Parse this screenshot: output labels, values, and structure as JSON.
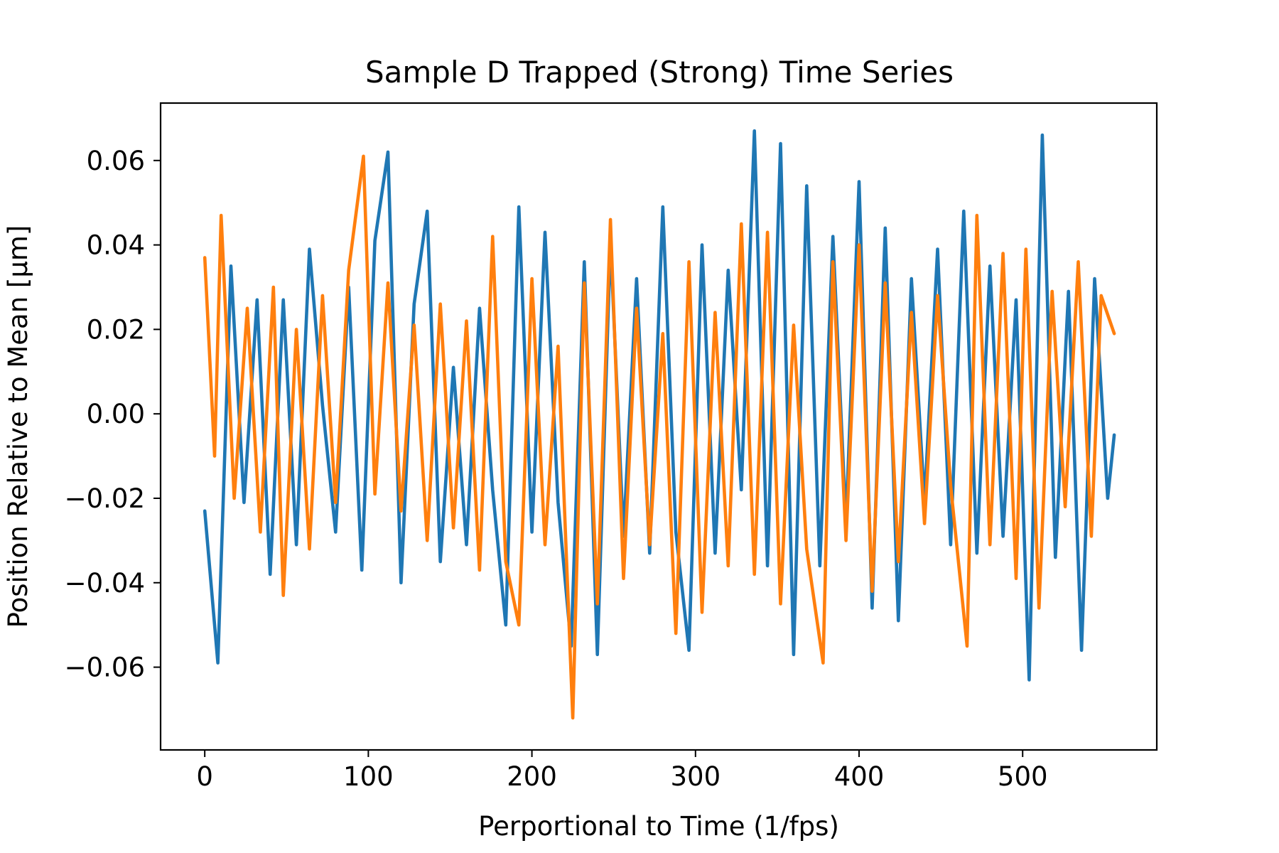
{
  "chart_data": {
    "type": "line",
    "title": "Sample D Trapped (Strong) Time Series",
    "xlabel": "Perportional to Time (1/fps)",
    "ylabel": "Position Relative to Mean [μm]",
    "xlim": [
      -27,
      582
    ],
    "ylim": [
      -0.0796,
      0.0736
    ],
    "xticks": [
      0,
      100,
      200,
      300,
      400,
      500
    ],
    "xtick_labels": [
      "0",
      "100",
      "200",
      "300",
      "400",
      "500"
    ],
    "yticks": [
      -0.06,
      -0.04,
      -0.02,
      0.0,
      0.02,
      0.04,
      0.06
    ],
    "ytick_labels": [
      "−0.06",
      "−0.04",
      "−0.02",
      "0.00",
      "0.02",
      "0.04",
      "0.06"
    ],
    "grid": false,
    "legend": "none",
    "series": [
      {
        "color": "#1f77b4",
        "x": [
          0,
          8,
          16,
          24,
          32,
          40,
          48,
          56,
          64,
          72,
          80,
          88,
          96,
          104,
          112,
          120,
          128,
          136,
          144,
          152,
          160,
          168,
          176,
          184,
          192,
          200,
          208,
          216,
          224,
          232,
          240,
          248,
          256,
          264,
          272,
          280,
          288,
          296,
          304,
          312,
          320,
          328,
          336,
          344,
          352,
          360,
          368,
          376,
          384,
          392,
          400,
          408,
          416,
          424,
          432,
          440,
          448,
          456,
          464,
          472,
          480,
          488,
          496,
          504,
          512,
          520,
          528,
          536,
          544,
          552,
          556
        ],
        "y": [
          -0.023,
          -0.059,
          0.035,
          -0.021,
          0.027,
          -0.038,
          0.027,
          -0.031,
          0.039,
          0.002,
          -0.028,
          0.03,
          -0.037,
          0.041,
          0.062,
          -0.04,
          0.026,
          0.048,
          -0.035,
          0.011,
          -0.031,
          0.025,
          -0.018,
          -0.05,
          0.049,
          -0.028,
          0.043,
          -0.021,
          -0.055,
          0.036,
          -0.057,
          0.041,
          -0.029,
          0.032,
          -0.033,
          0.049,
          -0.028,
          -0.056,
          0.04,
          -0.033,
          0.034,
          -0.018,
          0.067,
          -0.036,
          0.064,
          -0.057,
          0.054,
          -0.036,
          0.042,
          -0.026,
          0.055,
          -0.046,
          0.044,
          -0.049,
          0.032,
          -0.021,
          0.039,
          -0.031,
          0.048,
          -0.033,
          0.035,
          -0.029,
          0.027,
          -0.063,
          0.066,
          -0.034,
          0.029,
          -0.056,
          0.032,
          -0.02,
          -0.005
        ]
      },
      {
        "color": "#ff7f0e",
        "x": [
          0,
          6,
          10,
          18,
          26,
          34,
          42,
          48,
          56,
          64,
          72,
          80,
          88,
          97,
          104,
          112,
          120,
          128,
          136,
          144,
          152,
          160,
          168,
          176,
          184,
          192,
          200,
          208,
          216,
          225,
          232,
          240,
          248,
          256,
          264,
          272,
          280,
          288,
          296,
          304,
          312,
          320,
          328,
          336,
          344,
          352,
          360,
          368,
          378,
          384,
          392,
          400,
          408,
          416,
          424,
          432,
          440,
          448,
          456,
          466,
          472,
          480,
          488,
          496,
          502,
          510,
          518,
          526,
          534,
          542,
          548,
          556
        ],
        "y": [
          0.037,
          -0.01,
          0.047,
          -0.02,
          0.025,
          -0.028,
          0.03,
          -0.043,
          0.02,
          -0.032,
          0.028,
          -0.021,
          0.034,
          0.061,
          -0.019,
          0.031,
          -0.023,
          0.021,
          -0.03,
          0.026,
          -0.027,
          0.022,
          -0.037,
          0.042,
          -0.035,
          -0.05,
          0.032,
          -0.031,
          0.016,
          -0.072,
          0.031,
          -0.045,
          0.046,
          -0.039,
          0.025,
          -0.031,
          0.019,
          -0.052,
          0.036,
          -0.047,
          0.024,
          -0.036,
          0.045,
          -0.038,
          0.043,
          -0.045,
          0.021,
          -0.032,
          -0.059,
          0.036,
          -0.03,
          0.04,
          -0.042,
          0.031,
          -0.035,
          0.024,
          -0.026,
          0.028,
          -0.017,
          -0.055,
          0.047,
          -0.031,
          0.038,
          -0.039,
          0.039,
          -0.046,
          0.029,
          -0.022,
          0.036,
          -0.029,
          0.028,
          0.019
        ]
      }
    ]
  }
}
